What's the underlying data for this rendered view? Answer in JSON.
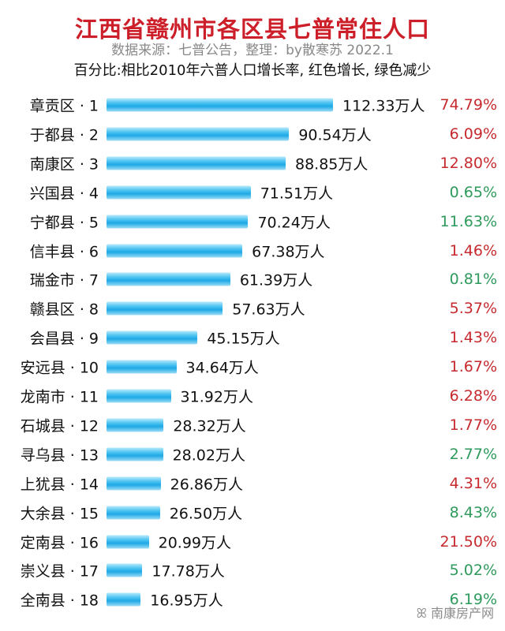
{
  "chart_data": {
    "type": "bar",
    "orientation": "horizontal",
    "title": "江西省赣州市各区县七普常住人口",
    "subtitle": "数据来源：七普公告，整理：by散寒苏 2022.1",
    "note": "百分比:相比2010年六普人口增长率, 红色增长, 绿色减少",
    "unit": "万人",
    "categories": [
      "章贡区 · 1",
      "于都县 · 2",
      "南康区 · 3",
      "兴国县 · 4",
      "宁都县 · 5",
      "信丰县 · 6",
      "瑞金市 · 7",
      "赣县区 · 8",
      "会昌县 · 9",
      "安远县 · 10",
      "龙南市 · 11",
      "石城县 · 12",
      "寻乌县 · 13",
      "上犹县 · 14",
      "大余县 · 15",
      "定南县 · 16",
      "崇义县 · 17",
      "全南县 · 18"
    ],
    "values": [
      112.33,
      90.54,
      88.85,
      71.51,
      70.24,
      67.38,
      61.39,
      57.63,
      45.15,
      34.64,
      31.92,
      28.32,
      28.02,
      26.86,
      26.5,
      20.99,
      17.78,
      16.95
    ],
    "value_labels": [
      "112.33万人",
      "90.54万人",
      "88.85万人",
      "71.51万人",
      "70.24万人",
      "67.38万人",
      "61.39万人",
      "57.63万人",
      "45.15万人",
      "34.64万人",
      "31.92万人",
      "28.32万人",
      "28.02万人",
      "26.86万人",
      "26.50万人",
      "20.99万人",
      "17.78万人",
      "16.95万人"
    ],
    "growth_labels": [
      "74.79%",
      "6.09%",
      "12.80%",
      "0.65%",
      "11.63%",
      "1.46%",
      "0.81%",
      "5.37%",
      "1.43%",
      "1.67%",
      "6.28%",
      "1.77%",
      "2.77%",
      "4.31%",
      "8.43%",
      "21.50%",
      "5.02%",
      "6.19%"
    ],
    "growth_direction": [
      "increase",
      "increase",
      "increase",
      "decrease",
      "decrease",
      "increase",
      "decrease",
      "increase",
      "increase",
      "increase",
      "increase",
      "increase",
      "decrease",
      "increase",
      "decrease",
      "increase",
      "decrease",
      "decrease"
    ],
    "xlim": [
      0,
      112.33
    ],
    "grid": false,
    "colors": {
      "bar": "#1ea9e6",
      "increase": "#c62a2f",
      "decrease": "#2e9a5c",
      "title": "#cc1f2a"
    }
  },
  "watermark": "南康房产网"
}
